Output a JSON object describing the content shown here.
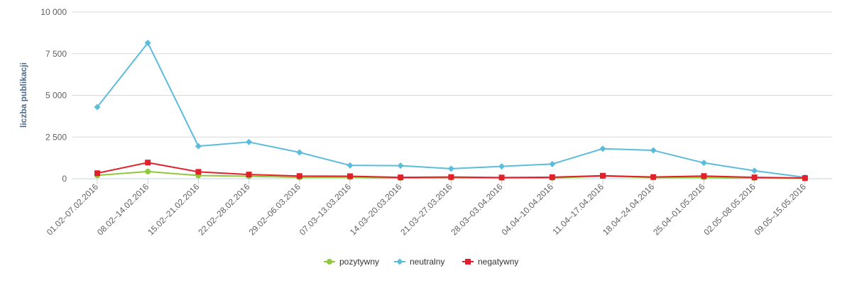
{
  "chart_data": {
    "type": "line",
    "title": "",
    "xlabel": "",
    "ylabel": "liczba publikacji",
    "ylim": [
      0,
      10000
    ],
    "yticks": [
      0,
      2500,
      5000,
      7500,
      10000
    ],
    "ytick_labels": [
      "0",
      "2 500",
      "5 000",
      "7 500",
      "10 000"
    ],
    "grid": true,
    "legend_position": "bottom-center",
    "categories": [
      "01.02–07.02.2016",
      "08.02–14.02.2016",
      "15.02–21.02.2016",
      "22.02–28.02.2016",
      "29.02–06.03.2016",
      "07.03–13.03.2016",
      "14.03–20.03.2016",
      "21.03–27.03.2016",
      "28.03–03.04.2016",
      "04.04–10.04.2016",
      "11.04–17.04.2016",
      "18.04–24.04.2016",
      "25.04–01.05.2016",
      "02.05–08.05.2016",
      "09.05–15.05.2016"
    ],
    "series": [
      {
        "name": "pozytywny",
        "color": "#90c83c",
        "marker": "circle",
        "values": [
          200,
          430,
          190,
          150,
          80,
          90,
          40,
          60,
          50,
          50,
          150,
          70,
          80,
          40,
          20
        ]
      },
      {
        "name": "neutralny",
        "color": "#5bbcdc",
        "marker": "diamond",
        "values": [
          4300,
          8150,
          1950,
          2200,
          1580,
          800,
          780,
          600,
          740,
          880,
          1800,
          1700,
          950,
          480,
          80
        ]
      },
      {
        "name": "negatywny",
        "color": "#e0202a",
        "marker": "square",
        "values": [
          330,
          970,
          410,
          250,
          160,
          150,
          80,
          100,
          70,
          90,
          180,
          100,
          160,
          80,
          40
        ]
      }
    ]
  }
}
